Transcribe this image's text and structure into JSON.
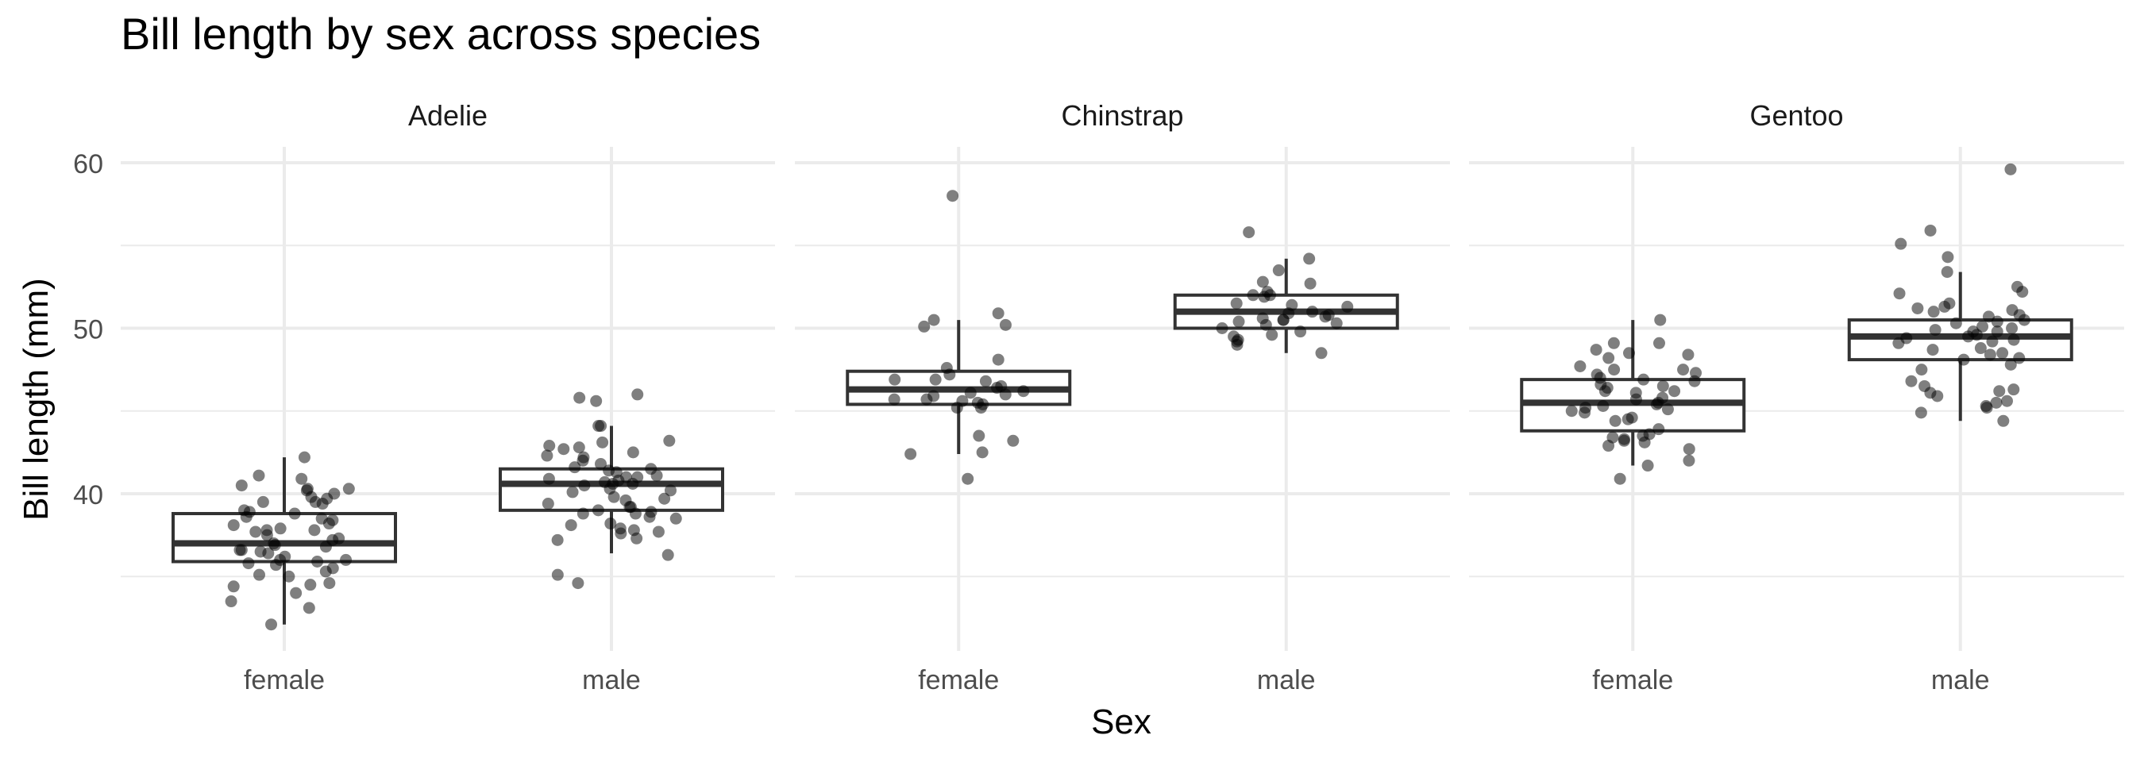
{
  "chart_data": {
    "type": "boxplot",
    "title": "Bill length by sex across species",
    "xlabel": "Sex",
    "ylabel": "Bill length (mm)",
    "ylim": [
      31,
      61
    ],
    "yticks": [
      40,
      50,
      60
    ],
    "ytick_labels": [
      "40",
      "50",
      "60"
    ],
    "categories": [
      "female",
      "male"
    ],
    "grid": true,
    "colors": {
      "box": "#333333",
      "point": "#000000",
      "grid": "#ebebeb",
      "text": "#4d4d4d"
    },
    "facets": [
      {
        "name": "Adelie",
        "groups": [
          {
            "category": "female",
            "box": {
              "whisker_low": 32.1,
              "q1": 35.9,
              "median": 37.0,
              "q3": 38.8,
              "whisker_high": 42.2
            },
            "points": [
              42.2,
              41.1,
              40.9,
              40.3,
              40.3,
              40.2,
              40.5,
              40.0,
              39.8,
              39.7,
              39.5,
              39.5,
              39.4,
              39.0,
              38.8,
              38.9,
              38.6,
              38.5,
              38.4,
              38.2,
              38.1,
              37.9,
              37.8,
              37.8,
              37.7,
              37.5,
              37.3,
              37.2,
              37.0,
              36.9,
              36.8,
              36.6,
              36.6,
              36.5,
              36.4,
              36.2,
              36.0,
              36.0,
              35.9,
              35.8,
              35.7,
              35.5,
              35.3,
              35.1,
              35.0,
              34.6,
              34.5,
              34.4,
              34.0,
              33.5,
              33.1,
              32.1
            ]
          },
          {
            "category": "male",
            "box": {
              "whisker_low": 36.4,
              "q1": 39.0,
              "median": 40.6,
              "q3": 41.5,
              "whisker_high": 44.1
            },
            "points": [
              46.0,
              45.8,
              45.6,
              44.1,
              44.1,
              43.2,
              43.1,
              42.9,
              42.8,
              42.7,
              42.5,
              42.3,
              42.2,
              42.0,
              41.8,
              41.6,
              41.5,
              41.4,
              41.3,
              41.1,
              41.0,
              41.0,
              40.9,
              40.8,
              40.7,
              40.6,
              40.6,
              40.5,
              40.3,
              40.2,
              40.1,
              39.8,
              39.7,
              39.6,
              39.4,
              39.2,
              39.2,
              39.0,
              38.9,
              38.8,
              38.8,
              38.6,
              38.5,
              38.2,
              38.1,
              37.9,
              37.8,
              37.7,
              37.6,
              37.3,
              37.2,
              36.3,
              35.1,
              34.6
            ]
          }
        ]
      },
      {
        "name": "Chinstrap",
        "groups": [
          {
            "category": "female",
            "box": {
              "whisker_low": 42.4,
              "q1": 45.4,
              "median": 46.3,
              "q3": 47.4,
              "whisker_high": 50.5
            },
            "points": [
              58.0,
              50.9,
              50.5,
              50.2,
              50.1,
              48.1,
              47.6,
              47.2,
              46.9,
              46.9,
              46.8,
              46.5,
              46.4,
              46.2,
              46.1,
              46.0,
              45.9,
              45.7,
              45.7,
              45.6,
              45.5,
              45.4,
              45.2,
              45.2,
              43.5,
              43.2,
              42.5,
              42.4,
              40.9
            ]
          },
          {
            "category": "male",
            "box": {
              "whisker_low": 48.5,
              "q1": 50.0,
              "median": 51.0,
              "q3": 52.0,
              "whisker_high": 54.2
            },
            "points": [
              55.8,
              54.2,
              53.5,
              52.8,
              52.7,
              52.2,
              52.0,
              52.0,
              51.9,
              51.5,
              51.4,
              51.3,
              51.0,
              50.9,
              50.8,
              50.7,
              50.6,
              50.5,
              50.5,
              50.4,
              50.3,
              50.2,
              50.0,
              49.8,
              49.6,
              49.5,
              49.3,
              49.2,
              49.0,
              48.5
            ]
          }
        ]
      },
      {
        "name": "Gentoo",
        "groups": [
          {
            "category": "female",
            "box": {
              "whisker_low": 41.7,
              "q1": 43.8,
              "median": 45.5,
              "q3": 46.9,
              "whisker_high": 50.5
            },
            "points": [
              50.5,
              49.1,
              49.1,
              48.7,
              48.5,
              48.4,
              48.2,
              47.7,
              47.5,
              47.5,
              47.3,
              47.2,
              47.0,
              46.9,
              46.8,
              46.6,
              46.5,
              46.4,
              46.2,
              46.2,
              46.1,
              45.8,
              45.7,
              45.5,
              45.4,
              45.3,
              45.2,
              45.1,
              45.0,
              44.9,
              44.6,
              44.5,
              44.4,
              43.9,
              43.6,
              43.5,
              43.4,
              43.3,
              43.2,
              43.1,
              42.9,
              42.7,
              42.0,
              41.7,
              40.9
            ]
          },
          {
            "category": "male",
            "box": {
              "whisker_low": 44.4,
              "q1": 48.1,
              "median": 49.5,
              "q3": 50.5,
              "whisker_high": 53.4
            },
            "points": [
              59.6,
              55.9,
              55.1,
              54.3,
              53.4,
              52.5,
              52.2,
              52.1,
              51.5,
              51.3,
              51.2,
              51.1,
              51.0,
              50.8,
              50.7,
              50.5,
              50.4,
              50.3,
              50.1,
              50.0,
              49.9,
              49.8,
              49.8,
              49.6,
              49.5,
              49.4,
              49.3,
              49.2,
              49.1,
              48.8,
              48.7,
              48.5,
              48.4,
              48.2,
              48.1,
              47.8,
              47.5,
              46.8,
              46.5,
              46.3,
              46.2,
              46.1,
              45.9,
              45.6,
              45.5,
              45.3,
              45.2,
              44.9,
              44.4
            ]
          }
        ]
      }
    ]
  }
}
